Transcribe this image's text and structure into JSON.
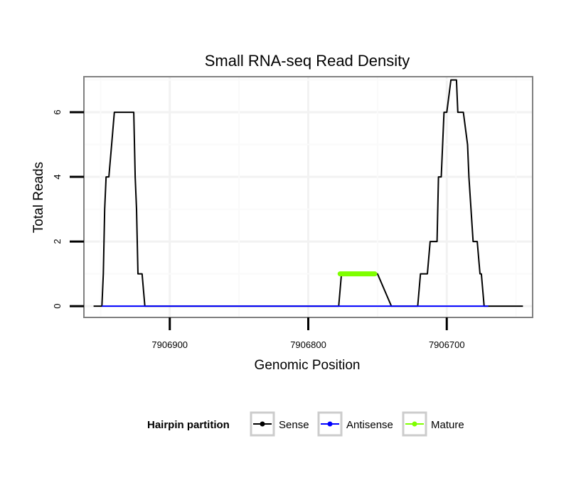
{
  "chart_data": {
    "type": "line",
    "title": "Small RNA-seq Read Density",
    "xlabel": "Genomic Position",
    "ylabel": "Total Reads",
    "x_reversed": true,
    "xlim": [
      7906962,
      7906638
    ],
    "ylim": [
      -0.35,
      7.1
    ],
    "x_ticks": [
      7906900,
      7906800,
      7906700
    ],
    "x_tick_labels": [
      "7906900",
      "7906800",
      "7906700"
    ],
    "y_ticks": [
      0,
      2,
      4,
      6
    ],
    "y_tick_labels": [
      "0",
      "2",
      "4",
      "6"
    ],
    "grid": true,
    "legend": {
      "position": "bottom",
      "title": "Hairpin partition",
      "entries": [
        {
          "name": "Sense",
          "color": "#000000"
        },
        {
          "name": "Antisense",
          "color": "#0000ff"
        },
        {
          "name": "Mature",
          "color": "#7fff00"
        }
      ]
    },
    "series": [
      {
        "name": "Sense",
        "color": "#000000",
        "x": [
          7906955,
          7906949,
          7906948,
          7906947,
          7906946,
          7906944,
          7906942,
          7906940,
          7906936,
          7906935,
          7906933,
          7906930,
          7906929,
          7906926,
          7906925,
          7906924,
          7906923,
          7906921,
          7906920,
          7906918,
          7906915,
          7906908,
          7906900,
          7906860,
          7906790,
          7906778,
          7906776,
          7906752,
          7906750,
          7906740,
          7906721,
          7906719,
          7906714,
          7906712,
          7906707,
          7906706,
          7906704,
          7906702,
          7906700,
          7906697,
          7906696,
          7906693,
          7906692,
          7906690,
          7906688,
          7906685,
          7906684,
          7906681,
          7906680,
          7906678,
          7906676,
          7906675,
          7906673,
          7906670,
          7906669,
          7906666,
          7906658,
          7906645
        ],
        "y": [
          0,
          0,
          1,
          3,
          4,
          4,
          5,
          6,
          6,
          6,
          6,
          6,
          6,
          6,
          4,
          3,
          1,
          1,
          1,
          0,
          0,
          0,
          0,
          0,
          0,
          0,
          1,
          1,
          1,
          0,
          0,
          1,
          1,
          2,
          2,
          4,
          4,
          6,
          6,
          7,
          7,
          7,
          6,
          6,
          6,
          5,
          4,
          2,
          2,
          2,
          1,
          1,
          0,
          0,
          0,
          0,
          0,
          0
        ]
      },
      {
        "name": "Antisense",
        "color": "#0000ff",
        "x": [
          7906949,
          7906670
        ],
        "y": [
          0,
          0
        ]
      },
      {
        "name": "Mature",
        "color": "#7fff00",
        "x": [
          7906777,
          7906752
        ],
        "y": [
          1,
          1
        ]
      }
    ]
  }
}
